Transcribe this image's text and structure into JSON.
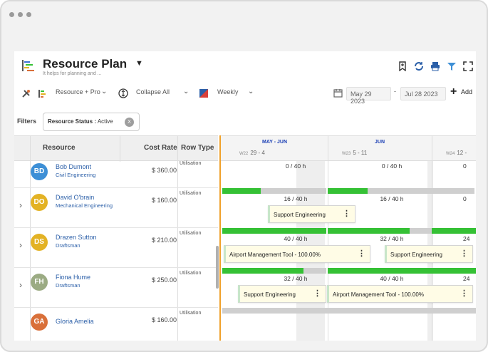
{
  "window": {
    "controls": [
      "dot",
      "dot",
      "dot"
    ]
  },
  "header": {
    "title": "Resource Plan",
    "subtitle": "It helps for planning and ...",
    "icons": [
      "bookmark-icon",
      "refresh-icon",
      "print-icon",
      "filter-icon",
      "fullscreen-icon"
    ]
  },
  "toolbar": {
    "group_by": "Resource + Pro",
    "collapse": "Collapse All",
    "view": "Weekly",
    "start_date": "May 29 2023",
    "date_sep": "-",
    "end_date": "Jul 28 2023",
    "add_label": "Add"
  },
  "filters": {
    "label": "Filters",
    "chip_key": "Resource Status :",
    "chip_value": "Active",
    "chip_close": "X"
  },
  "columns": {
    "resource": "Resource",
    "cost_rate": "Cost Rate",
    "row_type": "Row Type"
  },
  "timeline": {
    "months": [
      "MAY - JUN",
      "JUN"
    ],
    "weeks": [
      {
        "num": "W22",
        "range": "29 - 4"
      },
      {
        "num": "W23",
        "range": "5 - 11"
      },
      {
        "num": "W24",
        "range": "12 -"
      }
    ]
  },
  "resources": [
    {
      "initials": "BD",
      "name": "Bob Dumont",
      "role": "Civil Engineering",
      "cost": "$ 360.00",
      "row_type": "Utilisation",
      "color": "#3d8fd6",
      "util": [
        "0 / 40 h",
        "0 / 40 h",
        "0"
      ],
      "expandable": false
    },
    {
      "initials": "DO",
      "name": "David O'brain",
      "role": "Mechanical Engineering",
      "cost": "$ 160.00",
      "row_type": "Utilisation",
      "color": "#e3b224",
      "util": [
        "16 / 40 h",
        "16 / 40 h",
        "0"
      ],
      "expandable": true,
      "tasks": [
        {
          "label": "Support Engineering"
        }
      ]
    },
    {
      "initials": "DS",
      "name": "Drazen Sutton",
      "role": "Draftsman",
      "cost": "$ 210.00",
      "row_type": "Utilisation",
      "color": "#e3b224",
      "util": [
        "40 / 40 h",
        "32 / 40 h",
        "24"
      ],
      "expandable": true,
      "tasks": [
        {
          "label": "Airport Management Tool - 100.00%"
        },
        {
          "label": "Support Engineering"
        }
      ]
    },
    {
      "initials": "FH",
      "name": "Fiona Hume",
      "role": "Draftsman",
      "cost": "$ 250.00",
      "row_type": "Utilisation",
      "color": "#9bab83",
      "util": [
        "32 / 40 h",
        "40 / 40 h",
        "24"
      ],
      "expandable": true,
      "tasks": [
        {
          "label": "Support Engineering"
        },
        {
          "label": "Airport Management Tool - 100.00%"
        }
      ]
    },
    {
      "initials": "GA",
      "name": "Gloria Amelia",
      "role": "",
      "cost": "$ 160.00",
      "row_type": "Utilisation",
      "color": "#d9703a",
      "util": [
        "",
        "",
        ""
      ],
      "expandable": false
    }
  ],
  "colors": {
    "bar_green": "#35c135",
    "bar_gray": "#cfcfcf",
    "accent": "#1a3fb5",
    "today_line": "#f0a02a"
  }
}
